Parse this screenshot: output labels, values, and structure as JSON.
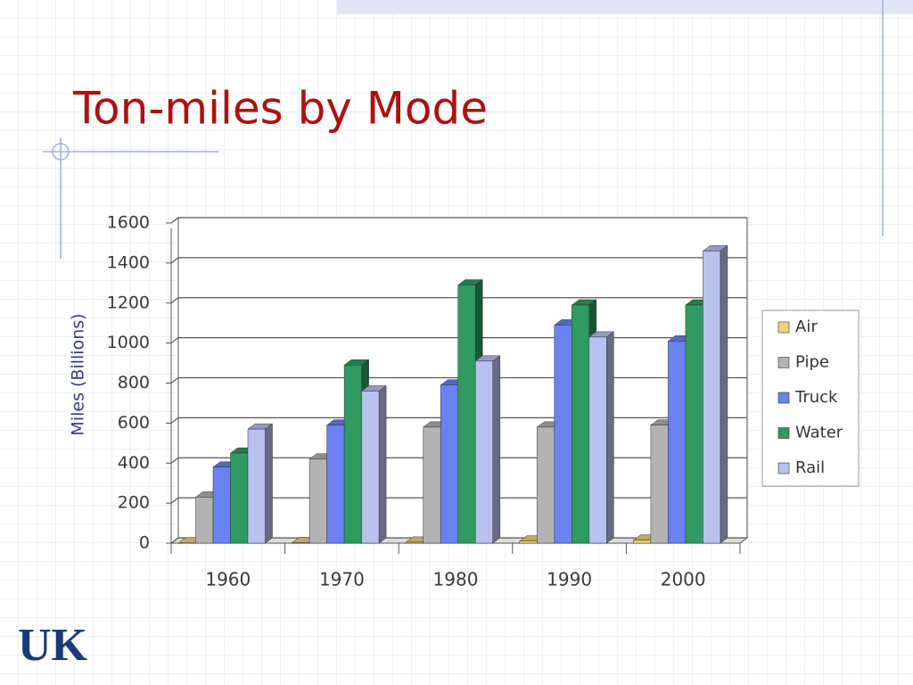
{
  "chart_data": {
    "type": "bar3d",
    "title": "Ton-miles by Mode",
    "ylabel": "Miles (Billions)",
    "categories": [
      "1960",
      "1970",
      "1980",
      "1990",
      "2000"
    ],
    "series": [
      {
        "name": "Air",
        "color": "#f0d27a",
        "values": [
          1,
          3,
          5,
          10,
          15
        ]
      },
      {
        "name": "Pipe",
        "color": "#b3b3b3",
        "values": [
          230,
          420,
          580,
          580,
          590
        ]
      },
      {
        "name": "Truck",
        "color": "#6a82f2",
        "values": [
          380,
          590,
          790,
          1090,
          1010
        ]
      },
      {
        "name": "Water",
        "color": "#2f9a62",
        "values": [
          450,
          890,
          1290,
          1190,
          1190
        ]
      },
      {
        "name": "Rail",
        "color": "#b9c1ef",
        "values": [
          570,
          760,
          910,
          1030,
          1460
        ]
      }
    ],
    "ylim": [
      0,
      1600
    ],
    "yticks": [
      0,
      200,
      400,
      600,
      800,
      1000,
      1200,
      1400,
      1600
    ],
    "grid": true,
    "legend": "right"
  },
  "logo": "UK"
}
